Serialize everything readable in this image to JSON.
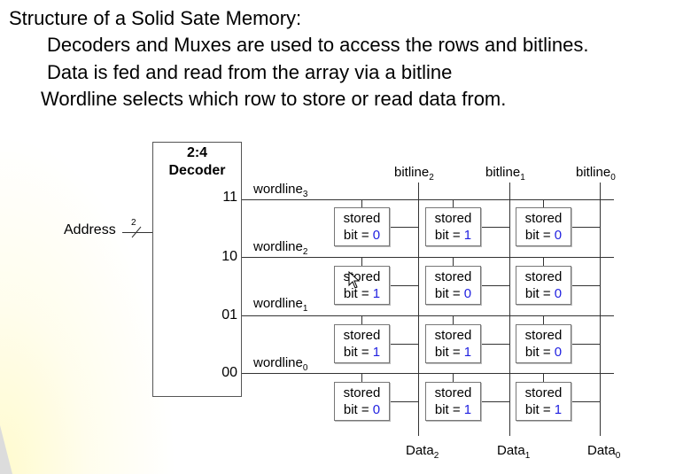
{
  "slide": {
    "title": "Structure of a Solid Sate Memory:",
    "bullets": [
      "Decoders and Muxes are used to access the rows and bitlines.",
      "Data is fed and read from the array via a bitline",
      "Wordline selects which row to store or read data from."
    ]
  },
  "decoder": {
    "title_line1": "2:4",
    "title_line2": "Decoder",
    "outputs": [
      "11",
      "10",
      "01",
      "00"
    ]
  },
  "address": {
    "label": "Address",
    "width": "2"
  },
  "wordlines": [
    {
      "name": "wordline",
      "index": "3"
    },
    {
      "name": "wordline",
      "index": "2"
    },
    {
      "name": "wordline",
      "index": "1"
    },
    {
      "name": "wordline",
      "index": "0"
    }
  ],
  "bitlines": [
    {
      "name": "bitline",
      "index": "2"
    },
    {
      "name": "bitline",
      "index": "1"
    },
    {
      "name": "bitline",
      "index": "0"
    }
  ],
  "data_outputs": [
    {
      "name": "Data",
      "index": "2"
    },
    {
      "name": "Data",
      "index": "1"
    },
    {
      "name": "Data",
      "index": "0"
    }
  ],
  "cell_label": {
    "line1": "stored",
    "prefix": "bit = "
  },
  "cells": [
    [
      "0",
      "1",
      "0"
    ],
    [
      "1",
      "0",
      "0"
    ],
    [
      "1",
      "1",
      "0"
    ],
    [
      "0",
      "1",
      "1"
    ]
  ]
}
